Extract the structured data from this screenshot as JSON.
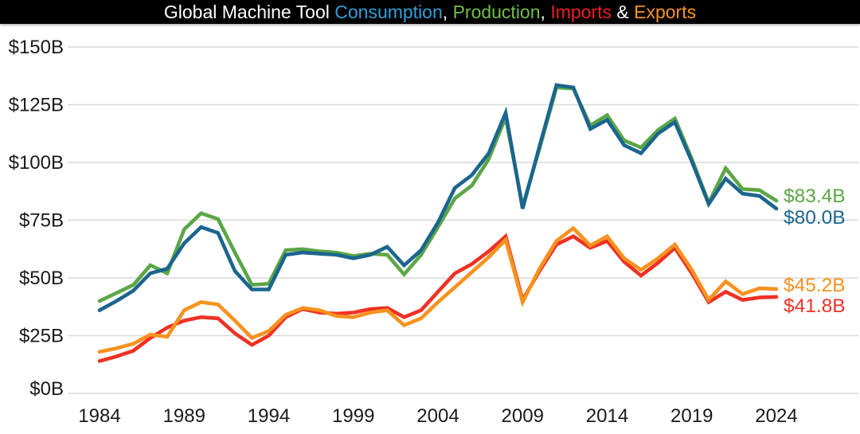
{
  "title": {
    "full_text": "Global Machine Tool Consumption, Production, Imports & Exports",
    "background": "#000000",
    "parts": [
      {
        "text": "Global Machine Tool ",
        "color": "#FFFFFF"
      },
      {
        "text": "Consumption",
        "color": "#2E9FD9"
      },
      {
        "text": ", ",
        "color": "#FFFFFF"
      },
      {
        "text": "Production",
        "color": "#71BF44"
      },
      {
        "text": ", ",
        "color": "#FFFFFF"
      },
      {
        "text": "Imports",
        "color": "#ED1C24"
      },
      {
        "text": " & ",
        "color": "#FFFFFF"
      },
      {
        "text": "Exports",
        "color": "#F7941E"
      }
    ]
  },
  "chart_data": {
    "type": "line",
    "title": "Global Machine Tool Consumption, Production, Imports & Exports",
    "unit": "billions of USD",
    "grid": "horizontal",
    "legend_position": "end-of-line-labels",
    "ylim": [
      0,
      150
    ],
    "y_ticks": [
      {
        "value": 150,
        "label": "$150B"
      },
      {
        "value": 125,
        "label": "$125B"
      },
      {
        "value": 100,
        "label": "$100B"
      },
      {
        "value": 75,
        "label": "$75B"
      },
      {
        "value": 50,
        "label": "$50B"
      },
      {
        "value": 25,
        "label": "$25B"
      },
      {
        "value": 0,
        "label": "$0B"
      }
    ],
    "x": [
      1984,
      1985,
      1986,
      1987,
      1988,
      1989,
      1990,
      1991,
      1992,
      1993,
      1994,
      1995,
      1996,
      1997,
      1998,
      1999,
      2000,
      2001,
      2002,
      2003,
      2004,
      2005,
      2006,
      2007,
      2008,
      2009,
      2010,
      2011,
      2012,
      2013,
      2014,
      2015,
      2016,
      2017,
      2018,
      2019,
      2020,
      2021,
      2022,
      2023,
      2024
    ],
    "x_tick_labels": [
      "1984",
      "1989",
      "1994",
      "1999",
      "2004",
      "2009",
      "2014",
      "2019",
      "2024"
    ],
    "series": [
      {
        "name": "Imports",
        "color": "#EE3124",
        "end_label": "$41.8B",
        "values": [
          14,
          16,
          18.5,
          24,
          28.5,
          31.5,
          33,
          32.5,
          26,
          21,
          25,
          33,
          36.5,
          35,
          34.5,
          35,
          36.5,
          37,
          33,
          36,
          44,
          52,
          56,
          61.5,
          68,
          40.5,
          53,
          64.5,
          68,
          63,
          66,
          57,
          51,
          56.5,
          63,
          52,
          39.5,
          44,
          40.5,
          41.5,
          41.8
        ]
      },
      {
        "name": "Exports",
        "color": "#F6921E",
        "end_label": "$45.2B",
        "values": [
          18,
          19.5,
          21.5,
          25.5,
          24.5,
          36,
          39.5,
          38.5,
          31.5,
          24,
          27,
          34,
          37,
          36,
          33.5,
          33,
          35,
          36,
          29.5,
          32.5,
          39.5,
          46,
          52.5,
          59,
          66.5,
          39.5,
          54,
          66,
          71.5,
          64,
          68,
          58.5,
          53.5,
          58.5,
          64.5,
          53.5,
          40.5,
          48.5,
          43,
          45.5,
          45.2
        ]
      },
      {
        "name": "Production",
        "color": "#5BA646",
        "end_label": "$83.4B",
        "values": [
          40,
          43.5,
          47,
          55.5,
          52,
          71,
          78,
          75.5,
          61,
          47,
          47.5,
          62,
          62.5,
          61.5,
          61,
          59.5,
          60.5,
          60,
          51.5,
          60,
          72,
          84.5,
          90,
          101.5,
          119.5,
          81,
          106,
          132.5,
          132,
          116,
          120.5,
          109.5,
          106.5,
          114,
          119,
          101.5,
          82.5,
          97.5,
          88.5,
          88,
          83.4
        ]
      },
      {
        "name": "Consumption",
        "color": "#1B658E",
        "end_label": "$80.0B",
        "values": [
          36,
          40,
          44.5,
          52,
          54,
          65,
          72,
          69.5,
          53,
          45,
          45,
          60,
          61,
          60.5,
          60,
          58.5,
          60,
          63.5,
          55.5,
          62,
          74,
          89,
          94.5,
          104,
          121.5,
          80,
          107,
          133.5,
          132.5,
          114.5,
          118.5,
          107.5,
          104,
          112.5,
          117.5,
          100.5,
          82,
          93,
          86.5,
          85.5,
          80
        ]
      }
    ]
  }
}
